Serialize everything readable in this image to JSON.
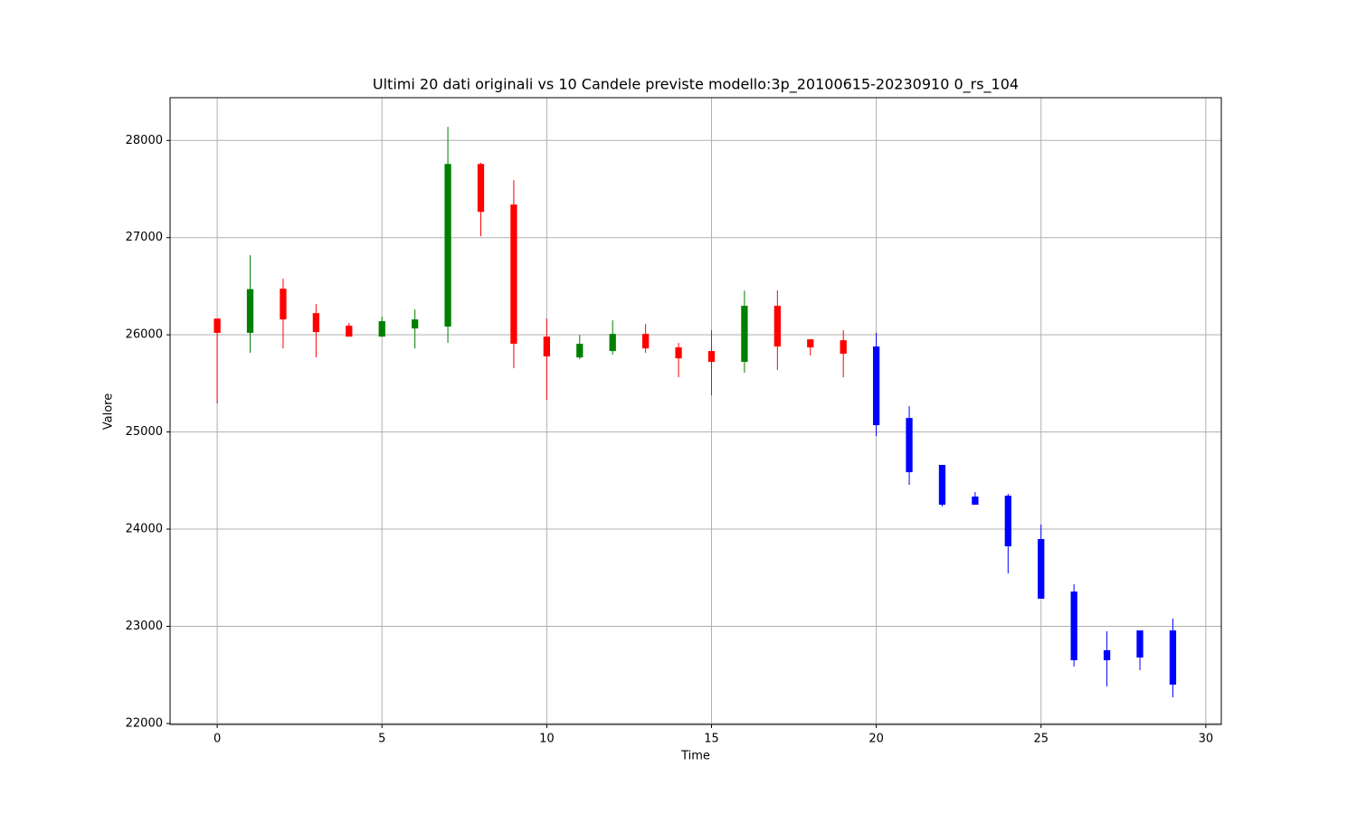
{
  "chart_data": {
    "type": "candlestick",
    "title": "Ultimi 20 dati originali vs 10 Candele previste modello:3p_20100615-20230910 0_rs_104",
    "x_label": "Time",
    "y_label": "Valore",
    "x": [
      0,
      1,
      2,
      3,
      4,
      5,
      6,
      7,
      8,
      9,
      10,
      11,
      12,
      13,
      14,
      15,
      16,
      17,
      18,
      19,
      20,
      21,
      22,
      23,
      24,
      25,
      26,
      27,
      28,
      29
    ],
    "open": [
      26167,
      26020,
      26474,
      26223,
      26093,
      25981,
      26065,
      26084,
      27758,
      27340,
      25981,
      25767,
      25833,
      26009,
      25870,
      25833,
      25721,
      26298,
      25953,
      25944,
      25879,
      25144,
      24661,
      24335,
      24344,
      23898,
      23358,
      22754,
      22958,
      22958
    ],
    "high": [
      26167,
      26819,
      26577,
      26316,
      26121,
      26186,
      26260,
      28140,
      27770,
      27591,
      26167,
      26000,
      26149,
      26112,
      25916,
      26047,
      26456,
      26456,
      25953,
      26047,
      26019,
      25265,
      24661,
      24381,
      24363,
      24047,
      23433,
      22949,
      22958,
      23079
    ],
    "low": [
      25293,
      25814,
      25860,
      25767,
      25981,
      25981,
      25860,
      25916,
      27014,
      25656,
      25330,
      25749,
      25795,
      25814,
      25563,
      25377,
      25609,
      25637,
      25786,
      25563,
      24958,
      24456,
      24233,
      24251,
      23544,
      23284,
      22586,
      22382,
      22549,
      22270
    ],
    "close": [
      26020,
      26470,
      26158,
      26028,
      25981,
      26140,
      26158,
      27758,
      27265,
      25907,
      25777,
      25907,
      26009,
      25860,
      25758,
      25721,
      26298,
      25879,
      25870,
      25805,
      25070,
      24586,
      24251,
      24251,
      23823,
      23284,
      22651,
      22651,
      22679,
      22400
    ],
    "colors": [
      "red",
      "green",
      "red",
      "red",
      "red",
      "green",
      "green",
      "green",
      "red",
      "red",
      "red",
      "green",
      "green",
      "red",
      "red",
      "red",
      "green",
      "red",
      "red",
      "red",
      "blue",
      "blue",
      "blue",
      "blue",
      "blue",
      "blue",
      "blue",
      "blue",
      "blue",
      "blue"
    ],
    "xlim": [
      -1.43,
      30.47
    ],
    "ylim": [
      21990,
      28440
    ],
    "xticks": [
      0,
      5,
      10,
      15,
      20,
      25,
      30
    ],
    "yticks": [
      22000,
      23000,
      24000,
      25000,
      26000,
      27000,
      28000
    ],
    "grid": true
  }
}
